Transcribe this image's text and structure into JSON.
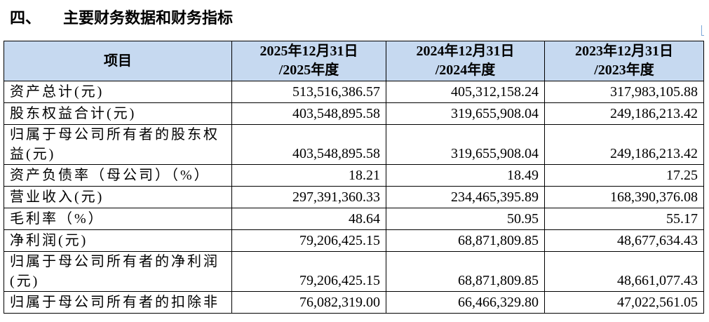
{
  "heading": {
    "number": "四、",
    "title": "主要财务数据和财务指标"
  },
  "table": {
    "header": [
      {
        "lines": [
          "项目"
        ]
      },
      {
        "lines": [
          "2025年12月31日",
          "/2025年度"
        ]
      },
      {
        "lines": [
          "2024年12月31日",
          "/2024年度"
        ]
      },
      {
        "lines": [
          "2023年12月31日",
          "/2023年度"
        ]
      }
    ],
    "rows": [
      [
        "资产总计(元)",
        "513,516,386.57",
        "405,312,158.24",
        "317,983,105.88"
      ],
      [
        "股东权益合计(元)",
        "403,548,895.58",
        "319,655,908.04",
        "249,186,213.42"
      ],
      [
        "归属于母公司所有者的股东权益(元)",
        "403,548,895.58",
        "319,655,908.04",
        "249,186,213.42"
      ],
      [
        "资产负债率（母公司）（%）",
        "18.21",
        "18.49",
        "17.25"
      ],
      [
        "营业收入(元)",
        "297,391,360.33",
        "234,465,395.89",
        "168,390,376.08"
      ],
      [
        "毛利率（%）",
        "48.64",
        "50.95",
        "55.17"
      ],
      [
        "净利润(元)",
        "79,206,425.15",
        "68,871,809.85",
        "48,677,634.43"
      ],
      [
        "归属于母公司所有者的净利润(元)",
        "79,206,425.15",
        "68,871,809.85",
        "48,661,077.43"
      ],
      [
        "归属于母公司所有者的扣除非",
        "76,082,319.00",
        "66,466,329.80",
        "47,022,561.05"
      ]
    ]
  }
}
